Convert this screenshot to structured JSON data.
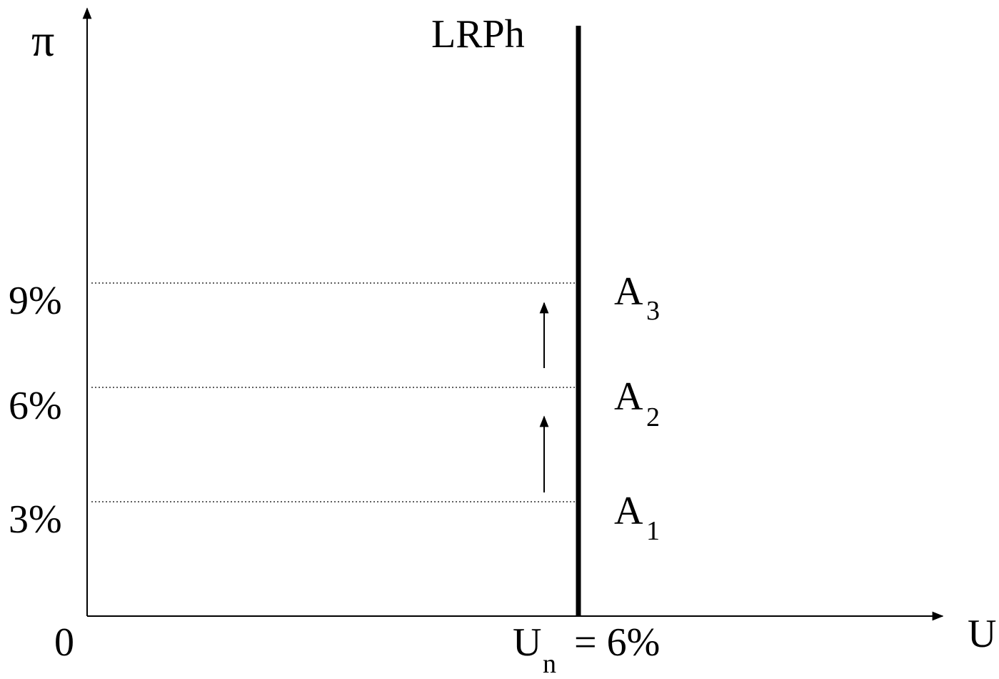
{
  "diagram": {
    "y_axis_label": "π",
    "x_axis_label": "U",
    "origin_label": "0",
    "curve_label": "LRPh",
    "natural_rate": {
      "base": "U",
      "subscript": "n",
      "rest": " = 6%"
    },
    "y_ticks": [
      "9%",
      "6%",
      "3%"
    ],
    "points": [
      {
        "base": "A",
        "subscript": "3"
      },
      {
        "base": "A",
        "subscript": "2"
      },
      {
        "base": "A",
        "subscript": "1"
      }
    ],
    "colors": {
      "ink": "#000000",
      "background": "#ffffff"
    }
  }
}
